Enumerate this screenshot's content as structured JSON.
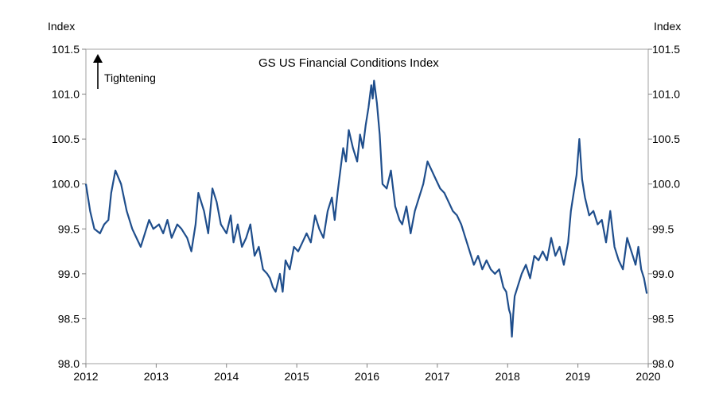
{
  "chart_data": {
    "type": "line",
    "title": "GS US Financial Conditions Index",
    "annotation": "Tightening",
    "ylabel_left": "Index",
    "ylabel_right": "Index",
    "ylim": [
      98.0,
      101.5
    ],
    "yticks": [
      "101.5",
      "101.0",
      "100.5",
      "100.0",
      "99.5",
      "99.0",
      "98.5",
      "98.0"
    ],
    "xlim": [
      2012,
      2020
    ],
    "xticks": [
      "2012",
      "2013",
      "2014",
      "2015",
      "2016",
      "2017",
      "2018",
      "2019",
      "2020"
    ],
    "grid": false,
    "series": [
      {
        "color": "#1f4e8c",
        "x": [
          2012.0,
          2012.06,
          2012.12,
          2012.2,
          2012.26,
          2012.32,
          2012.36,
          2012.42,
          2012.5,
          2012.58,
          2012.66,
          2012.72,
          2012.78,
          2012.84,
          2012.9,
          2012.96,
          2013.04,
          2013.1,
          2013.16,
          2013.22,
          2013.3,
          2013.36,
          2013.4,
          2013.44,
          2013.5,
          2013.56,
          2013.6,
          2013.68,
          2013.74,
          2013.8,
          2013.86,
          2013.92,
          2014.0,
          2014.06,
          2014.1,
          2014.16,
          2014.22,
          2014.28,
          2014.34,
          2014.4,
          2014.46,
          2014.52,
          2014.58,
          2014.62,
          2014.66,
          2014.7,
          2014.76,
          2014.8,
          2014.84,
          2014.9,
          2014.96,
          2015.02,
          2015.08,
          2015.14,
          2015.2,
          2015.26,
          2015.32,
          2015.38,
          2015.44,
          2015.5,
          2015.54,
          2015.58,
          2015.62,
          2015.66,
          2015.7,
          2015.74,
          2015.8,
          2015.86,
          2015.9,
          2015.94,
          2015.98,
          2016.02,
          2016.06,
          2016.08,
          2016.1,
          2016.14,
          2016.18,
          2016.22,
          2016.28,
          2016.34,
          2016.4,
          2016.46,
          2016.5,
          2016.56,
          2016.62,
          2016.68,
          2016.74,
          2016.8,
          2016.86,
          2016.92,
          2016.98,
          2017.04,
          2017.1,
          2017.16,
          2017.22,
          2017.28,
          2017.34,
          2017.4,
          2017.46,
          2017.52,
          2017.58,
          2017.64,
          2017.7,
          2017.76,
          2017.82,
          2017.88,
          2017.94,
          2017.98,
          2018.02,
          2018.04,
          2018.06,
          2018.08,
          2018.1,
          2018.14,
          2018.2,
          2018.26,
          2018.32,
          2018.38,
          2018.44,
          2018.5,
          2018.56,
          2018.62,
          2018.68,
          2018.74,
          2018.8,
          2018.86,
          2018.9,
          2018.94,
          2018.98,
          2019.0,
          2019.02,
          2019.06,
          2019.1,
          2019.16,
          2019.22,
          2019.28,
          2019.34,
          2019.4,
          2019.46,
          2019.52,
          2019.58,
          2019.64,
          2019.7,
          2019.74,
          2019.78,
          2019.82,
          2019.86,
          2019.9,
          2019.94,
          2019.98
        ],
        "y": [
          100.0,
          99.7,
          99.5,
          99.45,
          99.55,
          99.6,
          99.9,
          100.15,
          100.0,
          99.7,
          99.5,
          99.4,
          99.3,
          99.45,
          99.6,
          99.5,
          99.55,
          99.45,
          99.6,
          99.4,
          99.55,
          99.5,
          99.45,
          99.4,
          99.25,
          99.55,
          99.9,
          99.7,
          99.45,
          99.95,
          99.8,
          99.55,
          99.45,
          99.65,
          99.35,
          99.55,
          99.3,
          99.4,
          99.55,
          99.2,
          99.3,
          99.05,
          99.0,
          98.95,
          98.85,
          98.8,
          99.0,
          98.8,
          99.15,
          99.05,
          99.3,
          99.25,
          99.35,
          99.45,
          99.35,
          99.65,
          99.5,
          99.4,
          99.7,
          99.85,
          99.6,
          99.9,
          100.15,
          100.4,
          100.25,
          100.6,
          100.4,
          100.25,
          100.55,
          100.4,
          100.65,
          100.85,
          101.1,
          100.95,
          101.15,
          100.9,
          100.55,
          100.0,
          99.95,
          100.15,
          99.75,
          99.6,
          99.55,
          99.75,
          99.45,
          99.7,
          99.85,
          100.0,
          100.25,
          100.15,
          100.05,
          99.95,
          99.9,
          99.8,
          99.7,
          99.65,
          99.55,
          99.4,
          99.25,
          99.1,
          99.2,
          99.05,
          99.15,
          99.05,
          99.0,
          99.05,
          98.85,
          98.8,
          98.6,
          98.55,
          98.3,
          98.55,
          98.75,
          98.85,
          99.0,
          99.1,
          98.95,
          99.2,
          99.15,
          99.25,
          99.15,
          99.4,
          99.2,
          99.3,
          99.1,
          99.35,
          99.7,
          99.9,
          100.1,
          100.3,
          100.5,
          100.05,
          99.85,
          99.65,
          99.7,
          99.55,
          99.6,
          99.35,
          99.7,
          99.3,
          99.15,
          99.05,
          99.4,
          99.3,
          99.2,
          99.1,
          99.3,
          99.05,
          98.95,
          98.78
        ]
      }
    ]
  }
}
